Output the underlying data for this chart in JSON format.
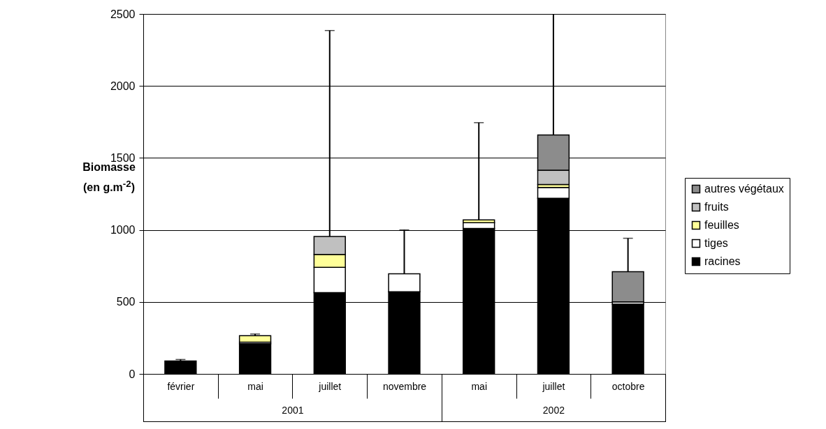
{
  "chart_data": {
    "type": "bar",
    "stacked": true,
    "ylabel": "Biomasse (en g.m$^{-2}$)",
    "categories": [
      "février",
      "mai",
      "juillet",
      "novembre",
      "mai",
      "juillet",
      "octobre"
    ],
    "series": [
      {
        "name": "racines",
        "color": "#000000",
        "values": [
          90,
          210,
          565,
          570,
          1010,
          1220,
          485
        ],
        "errors": [
          10,
          null,
          null,
          null,
          null,
          null,
          null
        ]
      },
      {
        "name": "tiges",
        "color": "#ffffff",
        "values": [
          null,
          10,
          175,
          125,
          40,
          75,
          15
        ],
        "errors": [
          null,
          null,
          null,
          305,
          null,
          null,
          null
        ]
      },
      {
        "name": "feuilles",
        "color": "#ffff99",
        "values": [
          null,
          45,
          90,
          null,
          20,
          20,
          null
        ],
        "errors": [
          null,
          12,
          null,
          null,
          675,
          null,
          null
        ]
      },
      {
        "name": "fruits",
        "color": "#c0c0c0",
        "values": [
          null,
          null,
          125,
          null,
          null,
          100,
          null
        ],
        "errors": [
          null,
          null,
          1430,
          null,
          null,
          null,
          null
        ]
      },
      {
        "name": "autres végétaux",
        "color": "#8c8c8c",
        "values": [
          null,
          null,
          null,
          null,
          null,
          245,
          210
        ],
        "errors": [
          null,
          null,
          null,
          null,
          null,
          840,
          232
        ]
      }
    ],
    "annotations": [
      "2001",
      "2002"
    ],
    "ylim": [
      0,
      2500
    ],
    "yticks": [
      0,
      500,
      1000,
      1500,
      2000,
      2500
    ],
    "grid": "y",
    "legend": "right"
  }
}
